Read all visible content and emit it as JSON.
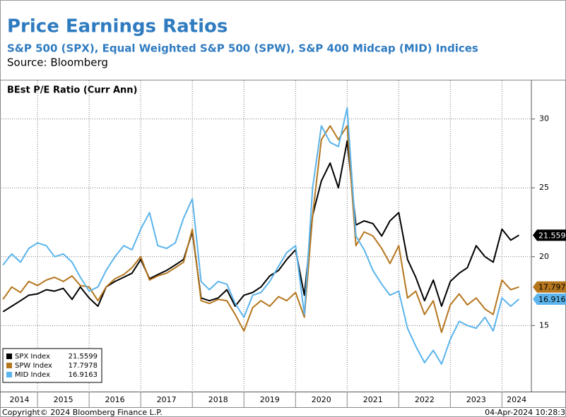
{
  "chart_data": {
    "type": "line",
    "title": "Price Earnings Ratios",
    "subtitle": "S&P 500 (SPX), Equal Weighted S&P 500 (SPW), S&P 400 Midcap (MID) Indices",
    "source": "Source: Bloomberg",
    "panel_label": "BEst P/E Ratio (Curr Ann)",
    "footer_left": "Copyright© 2024 Bloomberg Finance L.P.",
    "footer_right": "04-Apr-2024 10:28:3",
    "year_labels": [
      "2014",
      "2015",
      "2016",
      "2017",
      "2018",
      "2019",
      "2020",
      "2021",
      "2022",
      "2023",
      "2024"
    ],
    "xlim": [
      2014.3,
      2024.57
    ],
    "xticks": [
      2015,
      2016,
      2017,
      2018,
      2019,
      2020,
      2021,
      2022,
      2023,
      2024
    ],
    "ylim": [
      10.2,
      32.8
    ],
    "yticks": [
      15,
      20,
      25,
      30
    ],
    "grid": true,
    "legend": "lower left",
    "x": [
      2014.33,
      2014.5,
      2014.67,
      2014.83,
      2015.0,
      2015.17,
      2015.33,
      2015.5,
      2015.67,
      2015.83,
      2016.0,
      2016.17,
      2016.33,
      2016.5,
      2016.67,
      2016.83,
      2017.0,
      2017.17,
      2017.33,
      2017.5,
      2017.67,
      2017.83,
      2018.0,
      2018.17,
      2018.33,
      2018.5,
      2018.67,
      2018.83,
      2019.0,
      2019.17,
      2019.33,
      2019.5,
      2019.67,
      2019.83,
      2020.0,
      2020.17,
      2020.33,
      2020.5,
      2020.67,
      2020.83,
      2021.0,
      2021.17,
      2021.33,
      2021.5,
      2021.67,
      2021.83,
      2022.0,
      2022.17,
      2022.33,
      2022.5,
      2022.67,
      2022.83,
      2023.0,
      2023.17,
      2023.33,
      2023.5,
      2023.67,
      2023.83,
      2024.0,
      2024.17,
      2024.33
    ],
    "series": [
      {
        "name": "SPX Index",
        "legend_value": "21.5599",
        "tag_label": "21.559",
        "color": "#000000",
        "values": [
          16.0,
          16.4,
          16.8,
          17.2,
          17.3,
          17.6,
          17.5,
          17.7,
          16.9,
          17.8,
          17.0,
          16.4,
          17.8,
          18.2,
          18.5,
          18.8,
          19.8,
          18.4,
          18.7,
          19.0,
          19.4,
          19.8,
          21.8,
          17.0,
          16.8,
          17.0,
          17.6,
          16.4,
          17.2,
          17.4,
          17.8,
          18.6,
          19.0,
          19.8,
          20.5,
          17.2,
          23.0,
          25.5,
          26.8,
          25.0,
          28.4,
          22.3,
          22.6,
          22.4,
          21.5,
          22.6,
          23.2,
          19.8,
          18.5,
          16.8,
          18.3,
          16.4,
          18.2,
          18.8,
          19.2,
          20.8,
          20.0,
          19.6,
          22.0,
          21.2,
          21.5599
        ]
      },
      {
        "name": "SPW Index",
        "legend_value": "17.7978",
        "tag_label": "17.797",
        "color": "#b5761e",
        "values": [
          16.9,
          17.8,
          17.4,
          18.2,
          17.9,
          18.3,
          18.5,
          18.2,
          18.6,
          17.9,
          17.8,
          16.8,
          17.8,
          18.4,
          18.7,
          19.2,
          20.0,
          18.3,
          18.6,
          18.8,
          19.2,
          19.6,
          22.0,
          16.8,
          16.6,
          16.9,
          16.8,
          15.8,
          14.6,
          16.3,
          16.8,
          16.4,
          17.1,
          16.8,
          17.4,
          15.6,
          23.0,
          28.5,
          29.5,
          28.5,
          29.5,
          20.8,
          21.8,
          21.5,
          20.6,
          19.5,
          20.8,
          17.0,
          17.5,
          15.8,
          16.8,
          14.5,
          16.5,
          17.3,
          16.5,
          17.0,
          16.2,
          15.8,
          18.3,
          17.6,
          17.7978
        ]
      },
      {
        "name": "MID Index",
        "legend_value": "16.9163",
        "tag_label": "16.916",
        "color": "#5bb4ec",
        "values": [
          19.4,
          20.2,
          19.6,
          20.6,
          21.0,
          20.8,
          20.0,
          20.2,
          19.6,
          18.5,
          17.5,
          17.8,
          19.0,
          20.0,
          20.8,
          20.5,
          22.0,
          23.2,
          20.8,
          20.6,
          21.0,
          22.8,
          24.2,
          18.2,
          17.6,
          18.2,
          18.0,
          16.6,
          15.6,
          17.2,
          17.4,
          18.2,
          19.3,
          20.3,
          20.8,
          15.8,
          25.0,
          29.5,
          28.3,
          28.0,
          30.8,
          21.5,
          20.5,
          19.0,
          18.0,
          17.2,
          17.5,
          14.8,
          13.5,
          12.3,
          13.2,
          12.2,
          14.0,
          15.3,
          15.0,
          14.8,
          15.6,
          14.6,
          17.0,
          16.4,
          16.9163
        ]
      }
    ]
  }
}
